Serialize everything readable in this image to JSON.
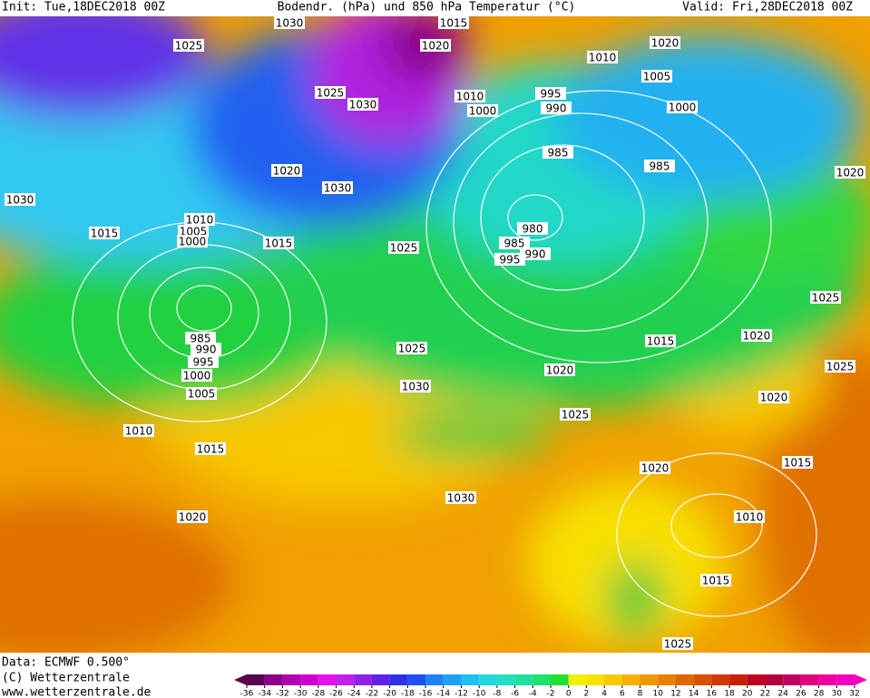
{
  "header": {
    "init": "Init: Tue,18DEC2018 00Z",
    "title": "Bodendr. (hPa) und 850 hPa Temperatur (°C)",
    "valid": "Valid: Fri,28DEC2018 00Z"
  },
  "footer": {
    "data": "Data: ECMWF  0.500°",
    "copyright": "(C) Wetterzentrale",
    "url": "www.wetterzentrale.de"
  },
  "colorbar": {
    "ticks": [
      -36,
      -34,
      -32,
      -30,
      -28,
      -26,
      -24,
      -22,
      -20,
      -18,
      -16,
      -14,
      -12,
      -10,
      -8,
      -6,
      -4,
      -2,
      0,
      2,
      4,
      6,
      8,
      10,
      12,
      14,
      16,
      18,
      20,
      22,
      24,
      26,
      28,
      30,
      32
    ],
    "colors": [
      "#5a0050",
      "#8a008a",
      "#b000b0",
      "#d000d0",
      "#e810e8",
      "#c020e8",
      "#9020e8",
      "#6020e8",
      "#3030e8",
      "#2050f0",
      "#2080f0",
      "#20a0f0",
      "#20c0f0",
      "#20d8e0",
      "#20e0c0",
      "#20e0a0",
      "#20e070",
      "#20e030",
      "#f0f000",
      "#f8e000",
      "#f8c800",
      "#f8b000",
      "#f09800",
      "#e88000",
      "#e06800",
      "#d85000",
      "#d03800",
      "#c82000",
      "#c00020",
      "#b00040",
      "#c00060",
      "#e00080",
      "#f000a0",
      "#f000c0"
    ]
  },
  "isobar_labels": [
    "1030",
    "1015",
    "1020",
    "1025",
    "1010",
    "1020",
    "1005",
    "1025",
    "1030",
    "1010",
    "1000",
    "995",
    "990",
    "1000",
    "1020",
    "985",
    "985",
    "1020",
    "1030",
    "1030",
    "1010",
    "1005",
    "1000",
    "1015",
    "1015",
    "1025",
    "980",
    "985",
    "990",
    "995",
    "1025",
    "1020",
    "1015",
    "985",
    "990",
    "995",
    "1000",
    "1005",
    "1025",
    "1030",
    "1020",
    "1025",
    "1020",
    "1025",
    "1010",
    "1015",
    "1015",
    "1020",
    "1030",
    "1020",
    "1010",
    "1015",
    "1025"
  ]
}
